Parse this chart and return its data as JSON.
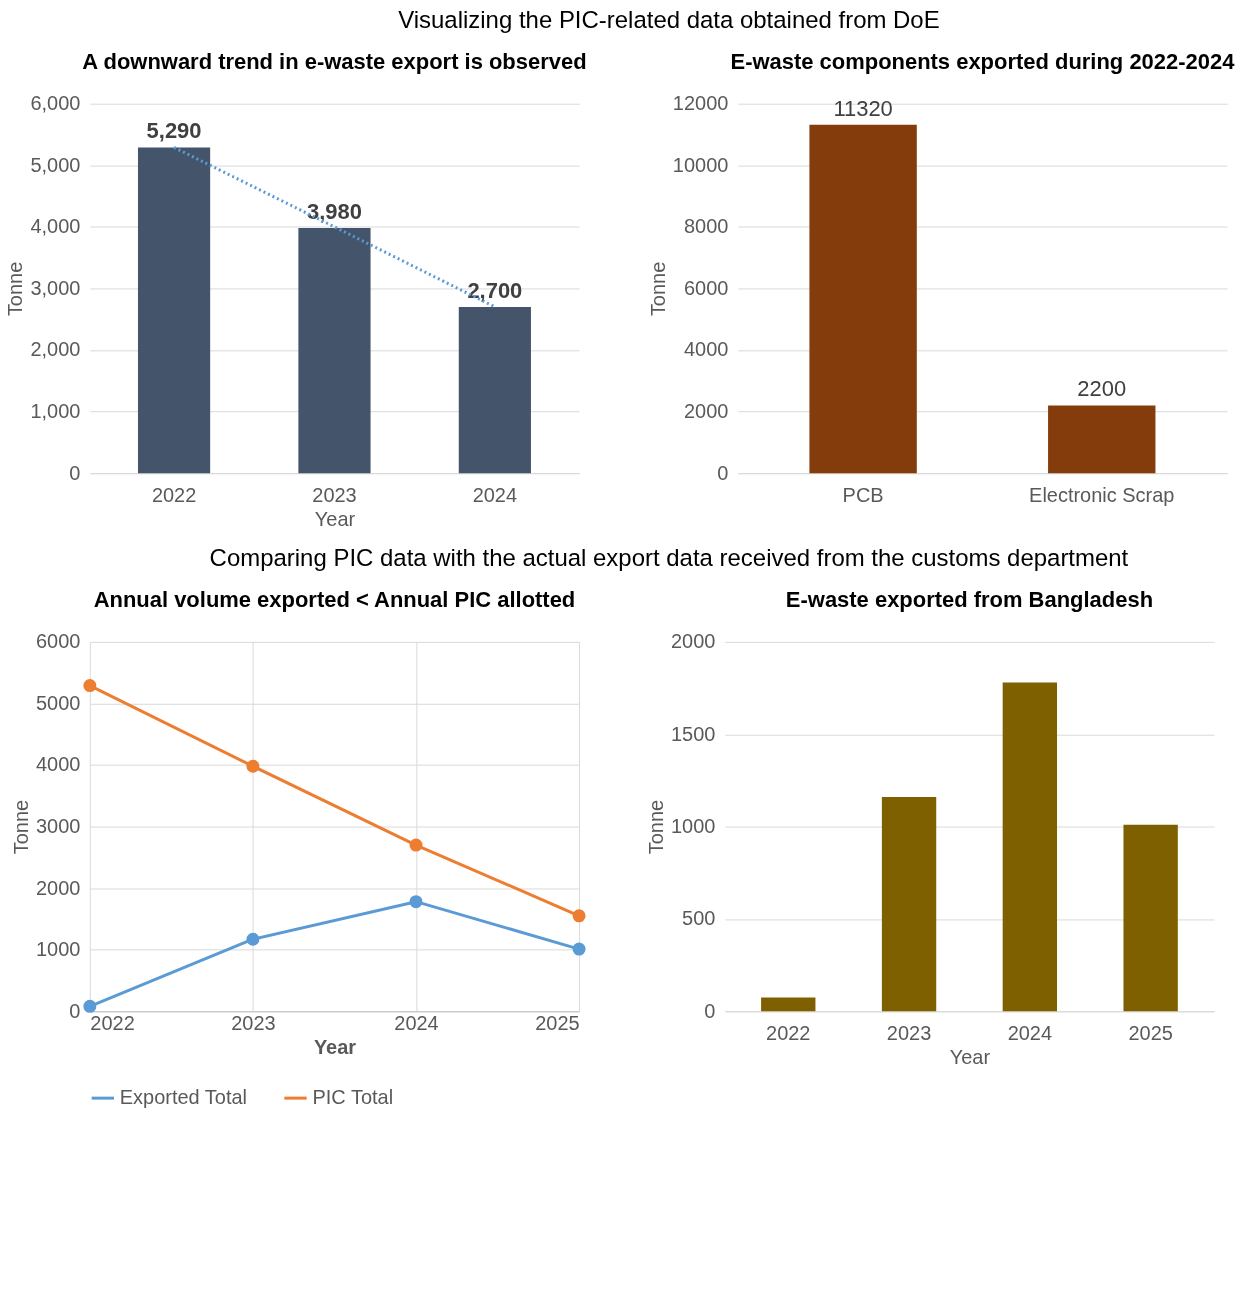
{
  "chart_data": [
    {
      "type": "bar",
      "title": "A downward trend in e-waste export is observed",
      "xlabel": "Year",
      "ylabel": "Tonne",
      "categories": [
        "2022",
        "2023",
        "2024"
      ],
      "ylim": [
        0,
        6000
      ],
      "yticks": [
        0,
        {
          "value": 1000,
          "label": "1,000"
        },
        {
          "value": 2000,
          "label": "2,000"
        },
        {
          "value": 3000,
          "label": "3,000"
        },
        {
          "value": 4000,
          "label": "4,000"
        },
        {
          "value": 5000,
          "label": "5,000"
        },
        {
          "value": 6000,
          "label": "6,000"
        }
      ],
      "grid": "y",
      "annotations": [
        "Visualizing the PIC-related data obtained from DoE"
      ],
      "series": [
        {
          "type": "bar",
          "color": "#44546a",
          "values": [
            5290,
            3980,
            2700
          ],
          "value_labels": [
            "5,290",
            "3,980",
            "2,700"
          ]
        },
        {
          "type": "line",
          "line_style": "dotted",
          "color": "#5b9bd5",
          "values": [
            5290,
            4000,
            2700
          ]
        }
      ]
    },
    {
      "type": "bar",
      "title": "E-waste components exported during 2022-2024",
      "ylabel": "Tonne",
      "categories": [
        "PCB",
        "Electronic Scrap"
      ],
      "ylim": [
        0,
        12000
      ],
      "yticks": [
        0,
        2000,
        4000,
        6000,
        8000,
        10000,
        12000
      ],
      "grid": "y",
      "data_labels": true,
      "series": [
        {
          "color": "#843c0c",
          "values": [
            11320,
            2200
          ]
        }
      ]
    },
    {
      "type": "line",
      "title": "Annual volume exported < Annual PIC allotted",
      "xlabel": "Year",
      "ylabel": "Tonne",
      "x": [
        2022,
        2023,
        2024,
        2025
      ],
      "xlim": [
        2022,
        2025
      ],
      "xticks": [
        2022,
        2023,
        2024,
        2025
      ],
      "ylim": [
        0,
        6000
      ],
      "yticks": [
        0,
        1000,
        2000,
        3000,
        4000,
        5000,
        6000
      ],
      "grid": true,
      "marker": "circle",
      "legend": "bottom",
      "annotations": [
        "Comparing PIC data with the actual export data received from the customs department"
      ],
      "series": [
        {
          "name": "Exported Total",
          "color": "#5b9bd5",
          "values": [
            80,
            1170,
            1780,
            1010
          ]
        },
        {
          "name": "PIC Total",
          "color": "#ed7d31",
          "values": [
            5290,
            3980,
            2700,
            1550
          ]
        }
      ]
    },
    {
      "type": "bar",
      "title": "E-waste exported from Bangladesh",
      "xlabel": "Year",
      "ylabel": "Tonne",
      "categories": [
        "2022",
        "2023",
        "2024",
        "2025"
      ],
      "ylim": [
        0,
        2000
      ],
      "yticks": [
        0,
        500,
        1000,
        1500,
        2000
      ],
      "grid": "y",
      "series": [
        {
          "color": "#7f6000",
          "values": [
            75,
            1160,
            1780,
            1010
          ]
        }
      ]
    }
  ]
}
